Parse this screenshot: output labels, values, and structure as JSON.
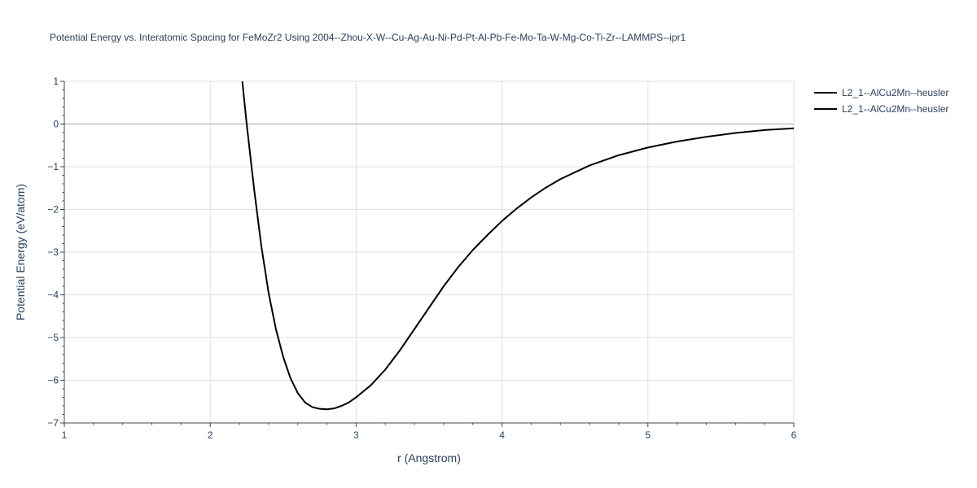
{
  "chart_data": {
    "type": "line",
    "title": "Potential Energy vs. Interatomic Spacing for FeMoZr2 Using 2004--Zhou-X-W--Cu-Ag-Au-Ni-Pd-Pt-Al-Pb-Fe-Mo-Ta-W-Mg-Co-Ti-Zr--LAMMPS--ipr1",
    "xlabel": "r (Angstrom)",
    "ylabel": "Potential Energy (eV/atom)",
    "xlim": [
      1,
      6
    ],
    "ylim": [
      -7,
      1
    ],
    "xticks": [
      1,
      2,
      3,
      4,
      5,
      6
    ],
    "xtick_labels": [
      "1",
      "2",
      "3",
      "4",
      "5",
      "6"
    ],
    "yticks": [
      1,
      0,
      -1,
      -2,
      -3,
      -4,
      -5,
      -6,
      -7
    ],
    "ytick_labels": [
      "1",
      "0",
      "−1",
      "−2",
      "−3",
      "−4",
      "−5",
      "−6",
      "−7"
    ],
    "grid": true,
    "legend_position": "top-right",
    "series": [
      {
        "name": "L2_1--AlCu2Mn--heusler",
        "color": "#000000",
        "x": [
          2.22,
          2.25,
          2.3,
          2.35,
          2.4,
          2.45,
          2.5,
          2.55,
          2.6,
          2.65,
          2.7,
          2.75,
          2.8,
          2.85,
          2.9,
          2.95,
          3.0,
          3.1,
          3.2,
          3.3,
          3.4,
          3.5,
          3.6,
          3.7,
          3.8,
          3.9,
          4.0,
          4.1,
          4.2,
          4.3,
          4.4,
          4.6,
          4.8,
          5.0,
          5.2,
          5.4,
          5.6,
          5.8,
          6.0
        ],
        "y": [
          1.0,
          0.0,
          -1.5,
          -2.85,
          -3.95,
          -4.8,
          -5.45,
          -5.95,
          -6.3,
          -6.52,
          -6.63,
          -6.67,
          -6.68,
          -6.66,
          -6.6,
          -6.52,
          -6.4,
          -6.12,
          -5.75,
          -5.3,
          -4.8,
          -4.3,
          -3.8,
          -3.35,
          -2.95,
          -2.6,
          -2.27,
          -1.98,
          -1.72,
          -1.49,
          -1.29,
          -0.97,
          -0.73,
          -0.55,
          -0.41,
          -0.3,
          -0.21,
          -0.14,
          -0.1
        ]
      },
      {
        "name": "L2_1--AlCu2Mn--heusler",
        "color": "#000000",
        "x": [],
        "y": []
      }
    ]
  }
}
